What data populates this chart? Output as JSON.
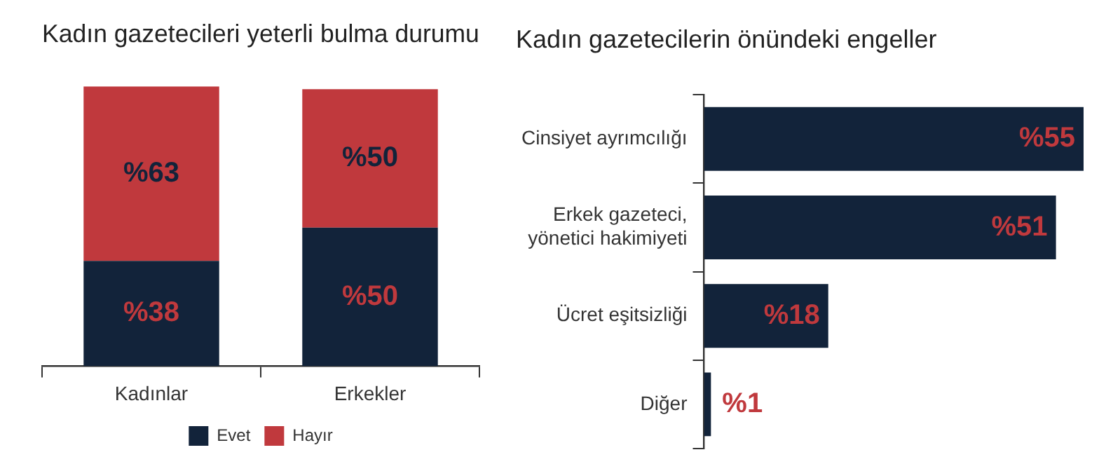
{
  "chart_data": [
    {
      "type": "bar",
      "title": "Kadın gazetecileri yeterli bulma durumu",
      "categories": [
        "Kadınlar",
        "Erkekler"
      ],
      "stacked": true,
      "legend": "bottom",
      "tick_labels": "x",
      "series": [
        {
          "name": "Evet",
          "color": "#12233a",
          "values": [
            38,
            50
          ],
          "value_labels": [
            "%38",
            "%50"
          ]
        },
        {
          "name": "Hayır",
          "color": "#c0393d",
          "values": [
            63,
            50
          ],
          "value_labels": [
            "%63",
            "%50"
          ]
        }
      ]
    },
    {
      "type": "bar",
      "title": "Kadın gazetecilerin önündeki engeller",
      "orientation": "horizontal",
      "tick_labels": "y",
      "categories": [
        "Cinsiyet ayrımcılığı",
        "Erkek gazeteci, yönetici hakimiyeti",
        "Ücret eşitsizliği",
        "Diğer"
      ],
      "values": [
        55,
        51,
        18,
        1
      ],
      "color": "#12233a",
      "value_labels": [
        "%55",
        "%51",
        "%18",
        "%1"
      ]
    }
  ]
}
